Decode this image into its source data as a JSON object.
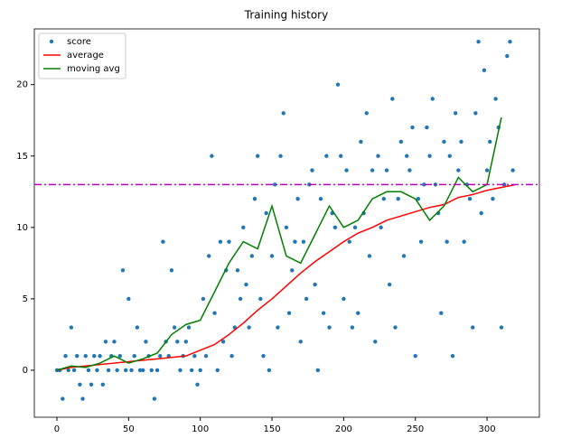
{
  "chart_data": {
    "type": "scatter-line",
    "title": "Training history",
    "xlim": [
      -15.75,
      336.5
    ],
    "ylim": [
      -3.29,
      23.9
    ],
    "xticks": [
      0,
      50,
      100,
      150,
      200,
      250,
      300
    ],
    "yticks": [
      0,
      5,
      10,
      15,
      20
    ],
    "hline": 13,
    "hline_color": "#bf00bf",
    "legend": "upper left",
    "series": [
      {
        "name": "score",
        "kind": "points",
        "color": "#1f77b4",
        "x": [
          0,
          2,
          4,
          6,
          8,
          10,
          12,
          14,
          16,
          18,
          20,
          22,
          24,
          26,
          28,
          30,
          32,
          34,
          36,
          38,
          40,
          42,
          44,
          46,
          48,
          50,
          52,
          54,
          56,
          58,
          60,
          62,
          64,
          66,
          68,
          70,
          72,
          74,
          76,
          78,
          80,
          82,
          84,
          86,
          88,
          90,
          92,
          94,
          96,
          98,
          100,
          102,
          104,
          106,
          108,
          110,
          112,
          114,
          116,
          118,
          120,
          122,
          124,
          126,
          128,
          130,
          132,
          134,
          136,
          138,
          140,
          142,
          144,
          146,
          148,
          150,
          152,
          154,
          156,
          158,
          160,
          162,
          164,
          166,
          168,
          170,
          172,
          174,
          176,
          178,
          180,
          182,
          184,
          186,
          188,
          190,
          192,
          194,
          196,
          198,
          200,
          202,
          204,
          206,
          208,
          210,
          212,
          214,
          216,
          218,
          220,
          222,
          224,
          226,
          228,
          230,
          232,
          234,
          236,
          238,
          240,
          242,
          244,
          246,
          248,
          250,
          252,
          254,
          256,
          258,
          260,
          262,
          264,
          266,
          268,
          270,
          272,
          274,
          276,
          278,
          280,
          282,
          284,
          286,
          288,
          290,
          292,
          294,
          296,
          298,
          300,
          302,
          304,
          306,
          308,
          310,
          312,
          314,
          316,
          318
        ],
        "values": [
          0,
          0,
          -2,
          1,
          0,
          3,
          0,
          1,
          -1,
          -2,
          1,
          0,
          -1,
          1,
          0,
          1,
          -1,
          2,
          0,
          1,
          2,
          0,
          1,
          7,
          0,
          5,
          0,
          1,
          3,
          0,
          0,
          2,
          1,
          0,
          -2,
          0,
          1,
          9,
          2,
          1,
          7,
          3,
          2,
          0,
          1,
          2,
          3,
          0,
          1,
          -1,
          0,
          5,
          1,
          8,
          15,
          4,
          0,
          9,
          2,
          7,
          9,
          1,
          3,
          7,
          5,
          10,
          6,
          3,
          8,
          12,
          15,
          5,
          1,
          11,
          0,
          8,
          13,
          3,
          15,
          18,
          10,
          4,
          7,
          9,
          12,
          2,
          9,
          5,
          13,
          14,
          6,
          0,
          12,
          4,
          15,
          3,
          11,
          10,
          20,
          15,
          5,
          14,
          9,
          3,
          10,
          4,
          16,
          11,
          18,
          8,
          14,
          2,
          15,
          10,
          12,
          14,
          6,
          19,
          3,
          12,
          16,
          8,
          15,
          14,
          17,
          1,
          12,
          9,
          13,
          17,
          15,
          19,
          13,
          11,
          4,
          16,
          9,
          15,
          1,
          18,
          14,
          16,
          9,
          13,
          12,
          3,
          18,
          23,
          11,
          21,
          14,
          16,
          12,
          19,
          17,
          3,
          13,
          22,
          23,
          14
        ]
      },
      {
        "name": "average",
        "kind": "line",
        "color": "#ff0000",
        "x": [
          0,
          10,
          20,
          30,
          40,
          50,
          60,
          70,
          80,
          90,
          100,
          110,
          120,
          130,
          140,
          150,
          160,
          170,
          180,
          190,
          200,
          210,
          220,
          230,
          240,
          250,
          260,
          270,
          280,
          290,
          300,
          310,
          320
        ],
        "values": [
          0,
          0.2,
          0.3,
          0.4,
          0.5,
          0.6,
          0.7,
          0.8,
          0.9,
          1.0,
          1.4,
          1.8,
          2.5,
          3.3,
          4.2,
          5.0,
          5.9,
          6.8,
          7.6,
          8.3,
          9.0,
          9.6,
          10.0,
          10.5,
          10.8,
          11.1,
          11.4,
          11.6,
          12.1,
          12.3,
          12.6,
          12.8,
          13.0
        ]
      },
      {
        "name": "moving avg",
        "kind": "line",
        "color": "#008000",
        "x": [
          0,
          10,
          20,
          30,
          40,
          50,
          60,
          70,
          80,
          90,
          100,
          110,
          120,
          130,
          140,
          150,
          160,
          170,
          180,
          190,
          200,
          210,
          220,
          230,
          240,
          250,
          260,
          270,
          280,
          290,
          300,
          310
        ],
        "values": [
          0,
          0.3,
          0.2,
          0.5,
          1.0,
          0.5,
          0.8,
          1.2,
          2.5,
          3.2,
          3.5,
          5.5,
          7.5,
          9.0,
          8.5,
          11.5,
          8.0,
          7.5,
          9.5,
          11.5,
          10.0,
          10.5,
          12.0,
          12.5,
          12.5,
          12.0,
          10.5,
          11.5,
          13.5,
          12.5,
          13.0,
          17.7
        ]
      }
    ]
  }
}
